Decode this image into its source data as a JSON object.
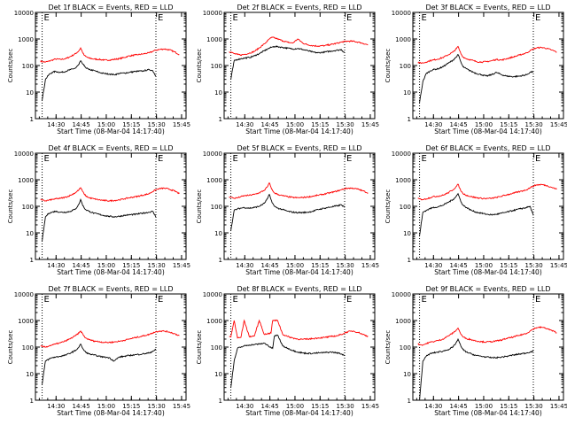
{
  "colors": {
    "events": "#000000",
    "lld": "#ff0000",
    "axes": "#000000"
  },
  "shared": {
    "ylabel": "Counts/sec",
    "xlabel": "Start Time (08-Mar-04 14:17:40)",
    "xticks": [
      "14:30",
      "14:45",
      "15:00",
      "15:15",
      "15:30",
      "15:45"
    ],
    "yticks": [
      "1",
      "10",
      "100",
      "1000",
      "10000"
    ],
    "marker": "E"
  },
  "chart_data": [
    {
      "type": "line",
      "title": "Det 1f BLACK = Events, RED = LLD",
      "x_unit": "minutes after 14:17:40",
      "ylim": [
        1,
        10000
      ],
      "yscale": "log",
      "event_window": [
        4,
        72
      ],
      "x": [
        3,
        4,
        6,
        8,
        10,
        12,
        15,
        18,
        21,
        24,
        26,
        27,
        28,
        29,
        30,
        32,
        35,
        38,
        41,
        44,
        47,
        50,
        53,
        56,
        60,
        64,
        68,
        70,
        72,
        74,
        77,
        80,
        83,
        86
      ],
      "series": [
        {
          "name": "Events",
          "values": [
            null,
            5,
            30,
            45,
            55,
            60,
            55,
            60,
            70,
            80,
            110,
            150,
            120,
            100,
            85,
            70,
            65,
            55,
            50,
            48,
            45,
            50,
            52,
            55,
            60,
            62,
            70,
            65,
            40,
            null,
            null,
            null,
            null,
            null
          ]
        },
        {
          "name": "LLD",
          "values": [
            150,
            140,
            135,
            145,
            160,
            175,
            170,
            180,
            220,
            280,
            360,
            460,
            330,
            250,
            220,
            190,
            175,
            170,
            160,
            160,
            170,
            180,
            200,
            230,
            250,
            270,
            300,
            340,
            380,
            400,
            420,
            390,
            330,
            260
          ]
        }
      ]
    },
    {
      "type": "line",
      "title": "Det 2f BLACK = Events, RED = LLD",
      "x_unit": "minutes after 14:17:40",
      "ylim": [
        1,
        10000
      ],
      "yscale": "log",
      "event_window": [
        4,
        72
      ],
      "x": [
        3,
        4,
        6,
        8,
        10,
        12,
        15,
        18,
        21,
        24,
        26,
        27,
        28,
        29,
        30,
        32,
        35,
        38,
        41,
        44,
        47,
        50,
        53,
        56,
        60,
        64,
        68,
        70,
        72,
        74,
        77,
        80,
        83,
        86
      ],
      "series": [
        {
          "name": "Events",
          "values": [
            null,
            30,
            150,
            170,
            180,
            190,
            200,
            230,
            280,
            360,
            420,
            450,
            480,
            500,
            520,
            510,
            480,
            450,
            420,
            440,
            400,
            360,
            320,
            300,
            320,
            350,
            380,
            400,
            300,
            null,
            null,
            null,
            null,
            null
          ]
        },
        {
          "name": "LLD",
          "values": [
            330,
            320,
            280,
            260,
            250,
            260,
            290,
            340,
            460,
            650,
            850,
            1000,
            1100,
            1150,
            1100,
            1000,
            850,
            750,
            700,
            1000,
            700,
            600,
            560,
            540,
            560,
            620,
            700,
            760,
            800,
            820,
            820,
            760,
            680,
            600
          ]
        }
      ]
    },
    {
      "type": "line",
      "title": "Det 3f BLACK = Events, RED = LLD",
      "x_unit": "minutes after 14:17:40",
      "ylim": [
        1,
        10000
      ],
      "yscale": "log",
      "event_window": [
        4,
        72
      ],
      "x": [
        3,
        4,
        6,
        8,
        10,
        12,
        15,
        18,
        21,
        24,
        26,
        27,
        28,
        29,
        30,
        32,
        35,
        38,
        41,
        44,
        47,
        50,
        53,
        56,
        60,
        64,
        68,
        70,
        72,
        74,
        77,
        80,
        83,
        86
      ],
      "series": [
        {
          "name": "Events",
          "values": [
            null,
            4,
            25,
            50,
            60,
            70,
            75,
            90,
            120,
            160,
            210,
            260,
            180,
            120,
            90,
            75,
            60,
            50,
            45,
            40,
            45,
            55,
            45,
            40,
            38,
            40,
            45,
            55,
            60,
            null,
            null,
            null,
            null,
            null
          ]
        },
        {
          "name": "LLD",
          "values": [
            130,
            125,
            125,
            135,
            150,
            160,
            175,
            200,
            250,
            320,
            430,
            520,
            360,
            260,
            210,
            180,
            160,
            140,
            135,
            140,
            150,
            170,
            160,
            180,
            210,
            250,
            300,
            360,
            420,
            460,
            480,
            440,
            380,
            320
          ]
        }
      ]
    },
    {
      "type": "line",
      "title": "Det 4f BLACK = Events, RED = LLD",
      "x_unit": "minutes after 14:17:40",
      "ylim": [
        1,
        10000
      ],
      "yscale": "log",
      "event_window": [
        4,
        72
      ],
      "x": [
        3,
        4,
        6,
        8,
        10,
        12,
        15,
        18,
        21,
        24,
        26,
        27,
        28,
        29,
        30,
        32,
        35,
        38,
        41,
        44,
        47,
        50,
        53,
        56,
        60,
        64,
        68,
        70,
        72,
        74,
        77,
        80,
        83,
        86
      ],
      "series": [
        {
          "name": "Events",
          "values": [
            null,
            5,
            40,
            55,
            60,
            65,
            60,
            60,
            65,
            80,
            120,
            180,
            120,
            90,
            75,
            65,
            55,
            50,
            45,
            42,
            40,
            42,
            45,
            48,
            50,
            55,
            60,
            65,
            40,
            null,
            null,
            null,
            null,
            null
          ]
        },
        {
          "name": "LLD",
          "values": [
            180,
            170,
            160,
            170,
            180,
            190,
            200,
            220,
            260,
            330,
            420,
            500,
            380,
            300,
            250,
            210,
            190,
            175,
            165,
            160,
            165,
            175,
            190,
            210,
            230,
            260,
            300,
            360,
            420,
            460,
            480,
            440,
            380,
            300
          ]
        }
      ]
    },
    {
      "type": "line",
      "title": "Det 5f BLACK = Events, RED = LLD",
      "x_unit": "minutes after 14:17:40",
      "ylim": [
        1,
        10000
      ],
      "yscale": "log",
      "event_window": [
        4,
        72
      ],
      "x": [
        3,
        4,
        6,
        8,
        10,
        12,
        15,
        18,
        21,
        24,
        26,
        27,
        28,
        29,
        30,
        32,
        35,
        38,
        41,
        44,
        47,
        50,
        53,
        56,
        60,
        64,
        68,
        70,
        72,
        74,
        77,
        80,
        83,
        86
      ],
      "series": [
        {
          "name": "Events",
          "values": [
            null,
            12,
            70,
            80,
            85,
            90,
            85,
            90,
            100,
            130,
            200,
            280,
            180,
            130,
            100,
            85,
            75,
            65,
            60,
            58,
            58,
            60,
            65,
            75,
            85,
            95,
            105,
            115,
            90,
            null,
            null,
            null,
            null,
            null
          ]
        },
        {
          "name": "LLD",
          "values": [
            230,
            220,
            200,
            210,
            230,
            250,
            260,
            280,
            320,
            400,
            560,
            760,
            520,
            380,
            320,
            280,
            250,
            230,
            215,
            210,
            215,
            225,
            240,
            260,
            290,
            330,
            380,
            420,
            460,
            480,
            480,
            440,
            380,
            320
          ]
        }
      ]
    },
    {
      "type": "line",
      "title": "Det 6f BLACK = Events, RED = LLD",
      "x_unit": "minutes after 14:17:40",
      "ylim": [
        1,
        10000
      ],
      "yscale": "log",
      "event_window": [
        4,
        72
      ],
      "x": [
        3,
        4,
        6,
        8,
        10,
        12,
        15,
        18,
        21,
        24,
        26,
        27,
        28,
        29,
        30,
        32,
        35,
        38,
        41,
        44,
        47,
        50,
        53,
        56,
        60,
        64,
        68,
        70,
        72,
        74,
        77,
        80,
        83,
        86
      ],
      "series": [
        {
          "name": "Events",
          "values": [
            null,
            8,
            60,
            70,
            80,
            90,
            95,
            110,
            140,
            180,
            240,
            300,
            200,
            140,
            110,
            90,
            70,
            60,
            55,
            50,
            48,
            50,
            55,
            60,
            70,
            80,
            90,
            100,
            45,
            null,
            null,
            null,
            null,
            null
          ]
        },
        {
          "name": "LLD",
          "values": [
            200,
            190,
            180,
            190,
            210,
            230,
            240,
            260,
            320,
            420,
            560,
            680,
            480,
            360,
            300,
            260,
            230,
            210,
            200,
            195,
            200,
            215,
            240,
            270,
            310,
            360,
            420,
            500,
            580,
            640,
            660,
            600,
            520,
            440
          ]
        }
      ]
    },
    {
      "type": "line",
      "title": "Det 7f BLACK = Events, RED = LLD",
      "x_unit": "minutes after 14:17:40",
      "ylim": [
        1,
        10000
      ],
      "yscale": "log",
      "event_window": [
        4,
        72
      ],
      "x": [
        3,
        4,
        6,
        8,
        10,
        12,
        15,
        18,
        21,
        24,
        26,
        27,
        28,
        29,
        30,
        32,
        35,
        38,
        41,
        44,
        47,
        50,
        53,
        56,
        60,
        64,
        68,
        70,
        72,
        74,
        77,
        80,
        83,
        86
      ],
      "series": [
        {
          "name": "Events",
          "values": [
            null,
            4,
            30,
            35,
            40,
            42,
            45,
            50,
            60,
            75,
            100,
            130,
            95,
            75,
            65,
            55,
            50,
            45,
            42,
            40,
            30,
            42,
            45,
            48,
            52,
            55,
            60,
            70,
            80,
            null,
            null,
            null,
            null,
            null
          ]
        },
        {
          "name": "LLD",
          "values": [
            110,
            105,
            100,
            110,
            120,
            130,
            145,
            170,
            210,
            270,
            340,
            400,
            330,
            260,
            220,
            190,
            170,
            160,
            150,
            150,
            155,
            165,
            180,
            200,
            230,
            260,
            300,
            340,
            380,
            400,
            400,
            370,
            320,
            270
          ]
        }
      ]
    },
    {
      "type": "line",
      "title": "Det 8f BLACK = Events, RED = LLD",
      "x_unit": "minutes after 14:17:40",
      "ylim": [
        1,
        10000
      ],
      "yscale": "log",
      "event_window": [
        4,
        72
      ],
      "x": [
        3,
        4,
        6,
        8,
        10,
        12,
        15,
        18,
        21,
        24,
        26,
        27,
        28,
        29,
        30,
        32,
        35,
        38,
        41,
        44,
        47,
        50,
        53,
        56,
        60,
        64,
        68,
        70,
        72,
        74,
        77,
        80,
        83,
        86
      ],
      "series": [
        {
          "name": "Events",
          "values": [
            null,
            3,
            30,
            90,
            100,
            110,
            120,
            125,
            130,
            140,
            120,
            100,
            95,
            90,
            260,
            280,
            110,
            90,
            75,
            65,
            60,
            58,
            58,
            60,
            62,
            65,
            60,
            55,
            50,
            null,
            null,
            null,
            null,
            null
          ]
        },
        {
          "name": "LLD",
          "values": [
            250,
            240,
            1000,
            220,
            230,
            1000,
            250,
            260,
            1000,
            300,
            320,
            330,
            340,
            1000,
            1000,
            1000,
            300,
            250,
            220,
            200,
            195,
            200,
            210,
            220,
            230,
            250,
            270,
            300,
            340,
            380,
            400,
            360,
            300,
            250
          ]
        }
      ]
    },
    {
      "type": "line",
      "title": "Det 9f BLACK = Events, RED = LLD",
      "x_unit": "minutes after 14:17:40",
      "ylim": [
        1,
        10000
      ],
      "yscale": "log",
      "event_window": [
        4,
        72
      ],
      "x": [
        3,
        4,
        6,
        8,
        10,
        12,
        15,
        18,
        21,
        24,
        26,
        27,
        28,
        29,
        30,
        32,
        35,
        38,
        41,
        44,
        47,
        50,
        53,
        56,
        60,
        64,
        68,
        70,
        72,
        74,
        77,
        80,
        83,
        86
      ],
      "series": [
        {
          "name": "Events",
          "values": [
            null,
            1,
            30,
            45,
            55,
            60,
            65,
            70,
            80,
            100,
            150,
            200,
            140,
            100,
            80,
            65,
            55,
            48,
            45,
            42,
            40,
            40,
            42,
            45,
            50,
            55,
            60,
            65,
            70,
            null,
            null,
            null,
            null,
            null
          ]
        },
        {
          "name": "LLD",
          "values": [
            130,
            125,
            120,
            135,
            150,
            160,
            175,
            200,
            260,
            340,
            440,
            520,
            380,
            290,
            240,
            210,
            190,
            170,
            160,
            155,
            160,
            170,
            185,
            210,
            240,
            280,
            330,
            400,
            480,
            540,
            560,
            500,
            420,
            350
          ]
        }
      ]
    }
  ]
}
